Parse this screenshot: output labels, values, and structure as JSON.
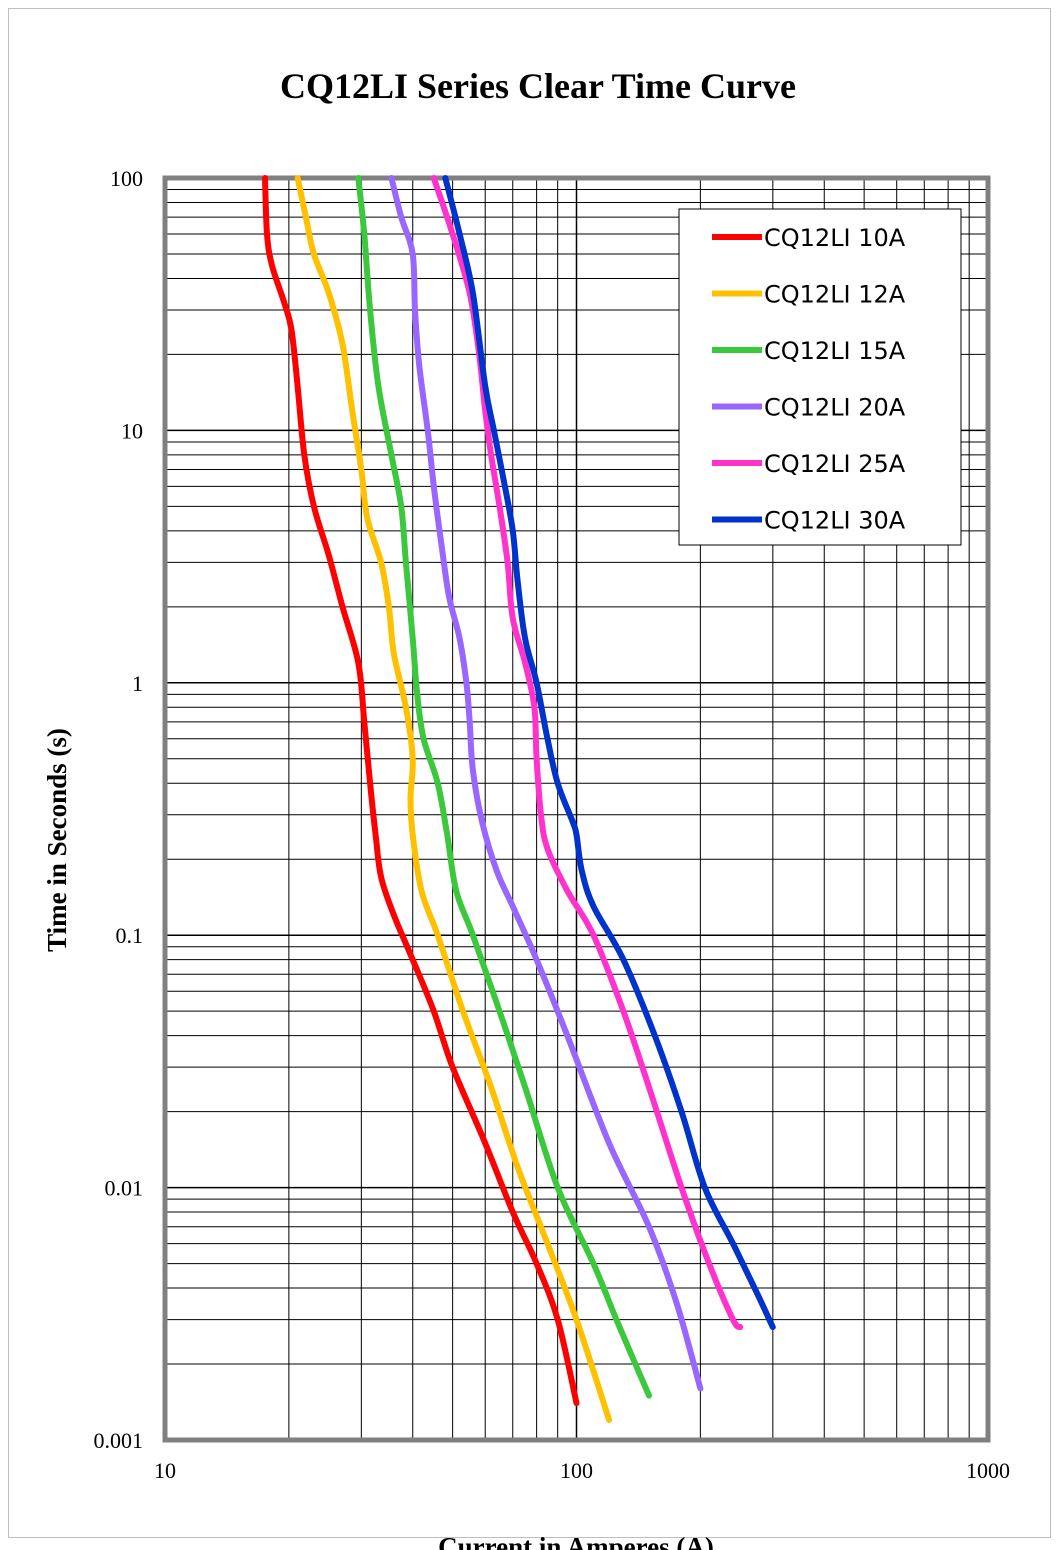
{
  "chart_data": {
    "type": "line",
    "title": "CQ12LI Series Clear Time Curve",
    "xlabel": "Current in Amperes (A)",
    "ylabel": "Time in Seconds (s)",
    "xscale": "log",
    "yscale": "log",
    "xlim": [
      10,
      1000
    ],
    "ylim": [
      0.001,
      100
    ],
    "x_ticks": [
      "10",
      "100",
      "1000"
    ],
    "y_ticks": [
      "100",
      "10",
      "1",
      "0.1",
      "0.01",
      "0.001"
    ],
    "grid": true,
    "legend_position": "top-right",
    "series": [
      {
        "name": "CQ12LI 10A",
        "color": "#ff0000",
        "points": [
          [
            17.5,
            100
          ],
          [
            17.7,
            60
          ],
          [
            18.2,
            45
          ],
          [
            19.5,
            32
          ],
          [
            20.3,
            25
          ],
          [
            21.0,
            15
          ],
          [
            21.8,
            8
          ],
          [
            23.0,
            5
          ],
          [
            25.0,
            3.2
          ],
          [
            27.0,
            2
          ],
          [
            29.5,
            1.2
          ],
          [
            30.5,
            0.7
          ],
          [
            31.5,
            0.4
          ],
          [
            32.5,
            0.25
          ],
          [
            33.5,
            0.17
          ],
          [
            36.0,
            0.12
          ],
          [
            40,
            0.08
          ],
          [
            45,
            0.05
          ],
          [
            50,
            0.03
          ],
          [
            60,
            0.015
          ],
          [
            70,
            0.008
          ],
          [
            80,
            0.005
          ],
          [
            90,
            0.003
          ],
          [
            100,
            0.0014
          ]
        ]
      },
      {
        "name": "CQ12LI 12A",
        "color": "#ffc000",
        "points": [
          [
            21.0,
            100
          ],
          [
            22.0,
            70
          ],
          [
            23.0,
            50
          ],
          [
            25.0,
            35
          ],
          [
            27.0,
            22
          ],
          [
            28.5,
            12
          ],
          [
            30.0,
            7
          ],
          [
            31.0,
            4.5
          ],
          [
            33.5,
            3
          ],
          [
            35.0,
            2
          ],
          [
            36.0,
            1.3
          ],
          [
            38.5,
            0.8
          ],
          [
            40.0,
            0.5
          ],
          [
            39.5,
            0.35
          ],
          [
            40,
            0.25
          ],
          [
            42,
            0.15
          ],
          [
            46,
            0.1
          ],
          [
            53,
            0.05
          ],
          [
            62,
            0.025
          ],
          [
            72,
            0.012
          ],
          [
            85,
            0.006
          ],
          [
            100,
            0.003
          ],
          [
            120,
            0.0012
          ]
        ]
      },
      {
        "name": "CQ12LI 15A",
        "color": "#3cc83c",
        "points": [
          [
            29.5,
            100
          ],
          [
            30.5,
            60
          ],
          [
            31.5,
            30
          ],
          [
            33.0,
            15
          ],
          [
            35.5,
            8
          ],
          [
            37.5,
            5
          ],
          [
            38.5,
            3
          ],
          [
            40.0,
            1.5
          ],
          [
            41.0,
            0.9
          ],
          [
            42.5,
            0.6
          ],
          [
            46,
            0.4
          ],
          [
            48.5,
            0.25
          ],
          [
            51,
            0.15
          ],
          [
            56,
            0.1
          ],
          [
            65,
            0.05
          ],
          [
            75,
            0.025
          ],
          [
            90,
            0.01
          ],
          [
            110,
            0.005
          ],
          [
            125,
            0.003
          ],
          [
            150,
            0.0015
          ]
        ]
      },
      {
        "name": "CQ12LI 20A",
        "color": "#9966ff",
        "points": [
          [
            35.5,
            100
          ],
          [
            37.5,
            70
          ],
          [
            40,
            50
          ],
          [
            40.5,
            30
          ],
          [
            41.5,
            18
          ],
          [
            43.5,
            10
          ],
          [
            45,
            6
          ],
          [
            47,
            3.5
          ],
          [
            49,
            2.2
          ],
          [
            52,
            1.5
          ],
          [
            54,
            1.0
          ],
          [
            55,
            0.7
          ],
          [
            56,
            0.45
          ],
          [
            59,
            0.28
          ],
          [
            64,
            0.18
          ],
          [
            70,
            0.13
          ],
          [
            80,
            0.08
          ],
          [
            95,
            0.04
          ],
          [
            120,
            0.015
          ],
          [
            150,
            0.007
          ],
          [
            175,
            0.0035
          ],
          [
            200,
            0.0016
          ]
        ]
      },
      {
        "name": "CQ12LI 25A",
        "color": "#ff33cc",
        "points": [
          [
            45,
            100
          ],
          [
            50,
            60
          ],
          [
            55,
            35
          ],
          [
            58,
            20
          ],
          [
            60,
            12
          ],
          [
            62,
            8
          ],
          [
            65,
            5
          ],
          [
            68,
            3
          ],
          [
            70,
            1.8
          ],
          [
            75,
            1.2
          ],
          [
            79,
            0.8
          ],
          [
            80,
            0.5
          ],
          [
            82,
            0.3
          ],
          [
            85,
            0.22
          ],
          [
            95,
            0.15
          ],
          [
            110,
            0.1
          ],
          [
            130,
            0.05
          ],
          [
            150,
            0.025
          ],
          [
            180,
            0.01
          ],
          [
            210,
            0.005
          ],
          [
            240,
            0.003
          ],
          [
            250,
            0.0028
          ]
        ]
      },
      {
        "name": "CQ12LI 30A",
        "color": "#0033cc",
        "points": [
          [
            48,
            100
          ],
          [
            52,
            60
          ],
          [
            56,
            35
          ],
          [
            60,
            15
          ],
          [
            63,
            10
          ],
          [
            67,
            6
          ],
          [
            70,
            4
          ],
          [
            72,
            2.5
          ],
          [
            75,
            1.5
          ],
          [
            80,
            1.0
          ],
          [
            85,
            0.6
          ],
          [
            90,
            0.4
          ],
          [
            98,
            0.28
          ],
          [
            100,
            0.25
          ],
          [
            103,
            0.18
          ],
          [
            110,
            0.13
          ],
          [
            130,
            0.08
          ],
          [
            155,
            0.04
          ],
          [
            180,
            0.02
          ],
          [
            205,
            0.01
          ],
          [
            240,
            0.006
          ],
          [
            275,
            0.0038
          ],
          [
            300,
            0.0028
          ]
        ]
      }
    ]
  }
}
